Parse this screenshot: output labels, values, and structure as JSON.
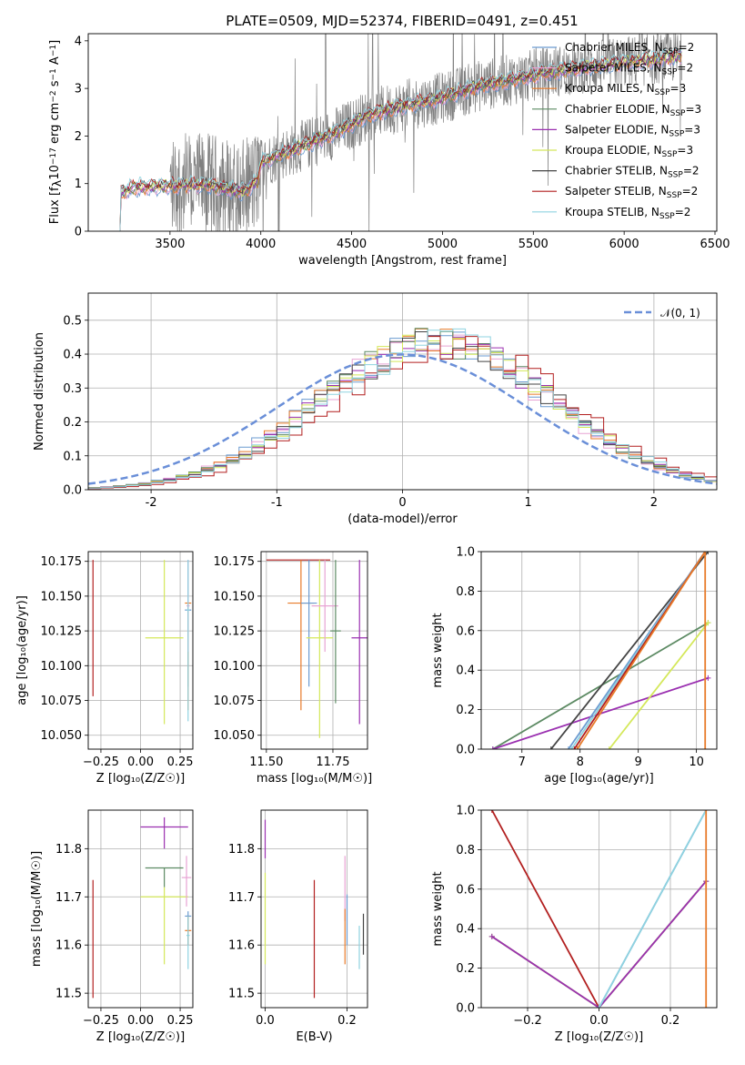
{
  "figure": {
    "title": "PLATE=0509, MJD=52374, FIBERID=0491, z=0.451",
    "models": [
      {
        "name": "Chabrier MILES, N$_{SSP}$=2",
        "label_main": "Chabrier MILES, N",
        "label_sub": "SSP",
        "label_end": "=2",
        "color": "#6b9bd1"
      },
      {
        "name": "Salpeter MILES, N$_{SSP}$=2",
        "label_main": "Salpeter MILES, N",
        "label_sub": "SSP",
        "label_end": "=2",
        "color": "#e8a3d4"
      },
      {
        "name": "Kroupa MILES, N$_{SSP}$=3",
        "label_main": "Kroupa MILES, N",
        "label_sub": "SSP",
        "label_end": "=3",
        "color": "#e87b2a"
      },
      {
        "name": "Chabrier ELODIE, N$_{SSP}$=3",
        "label_main": "Chabrier ELODIE, N",
        "label_sub": "SSP",
        "label_end": "=3",
        "color": "#5c8a63"
      },
      {
        "name": "Salpeter ELODIE, N$_{SSP}$=3",
        "label_main": "Salpeter ELODIE, N",
        "label_sub": "SSP",
        "label_end": "=3",
        "color": "#9a2fb0"
      },
      {
        "name": "Kroupa ELODIE, N$_{SSP}$=3",
        "label_main": "Kroupa ELODIE, N",
        "label_sub": "SSP",
        "label_end": "=3",
        "color": "#d4e85a"
      },
      {
        "name": "Chabrier STELIB, N$_{SSP}$=2",
        "label_main": "Chabrier STELIB, N",
        "label_sub": "SSP",
        "label_end": "=2",
        "color": "#444444"
      },
      {
        "name": "Salpeter STELIB, N$_{SSP}$=2",
        "label_main": "Salpeter STELIB, N",
        "label_sub": "SSP",
        "label_end": "=2",
        "color": "#b21f1f"
      },
      {
        "name": "Kroupa STELIB, N$_{SSP}$=2",
        "label_main": "Kroupa STELIB, N",
        "label_sub": "SSP",
        "label_end": "=2",
        "color": "#8fd3e0"
      }
    ],
    "data_color": "#808080",
    "gaussian_color": "#6a8fd8"
  },
  "chart_data": [
    {
      "id": "spectrum",
      "type": "line",
      "title": "PLATE=0509, MJD=52374, FIBERID=0491, z=0.451",
      "xlabel": "wavelength [Angstrom, rest frame]",
      "ylabel_parts": [
        "Flux [f",
        "λ",
        "10",
        "−17",
        " erg cm",
        "−2",
        " s",
        "−1",
        " A",
        "−1",
        "]"
      ],
      "xlim": [
        3050,
        6510
      ],
      "ylim": [
        0,
        4.15
      ],
      "xticks": [
        3500,
        4000,
        4500,
        5000,
        5500,
        6000,
        6500
      ],
      "yticks": [
        0,
        1,
        2,
        3,
        4
      ],
      "model_continuum": [
        [
          3225,
          0.0
        ],
        [
          3230,
          0.8
        ],
        [
          3300,
          0.92
        ],
        [
          3500,
          0.95
        ],
        [
          3700,
          0.98
        ],
        [
          3800,
          0.9
        ],
        [
          3900,
          0.82
        ],
        [
          3980,
          1.05
        ],
        [
          4000,
          1.45
        ],
        [
          4200,
          1.75
        ],
        [
          4400,
          2.05
        ],
        [
          4600,
          2.45
        ],
        [
          4800,
          2.65
        ],
        [
          5000,
          2.8
        ],
        [
          5200,
          3.05
        ],
        [
          5400,
          3.2
        ],
        [
          5600,
          3.35
        ],
        [
          5800,
          3.45
        ],
        [
          6000,
          3.55
        ],
        [
          6200,
          3.62
        ],
        [
          6320,
          3.7
        ]
      ],
      "data_range": [
        3500,
        6320
      ],
      "legend": "top-right",
      "grid": false
    },
    {
      "id": "residual-histogram",
      "type": "line",
      "xlabel": "(data-model)/error",
      "ylabel": "Normed distribution",
      "xlim": [
        -2.5,
        2.5
      ],
      "ylim": [
        0,
        0.58
      ],
      "xticks": [
        -2,
        -1,
        0,
        1,
        2
      ],
      "yticks": [
        0.0,
        0.1,
        0.2,
        0.3,
        0.4,
        0.5
      ],
      "gaussian_label": "𝒩(0, 1)",
      "gaussian_mu": 0,
      "gaussian_sigma": 1,
      "bin_width": 0.1,
      "histogram_shift": 0.28,
      "histogram_sigma": 0.92,
      "grid": true,
      "legend": "top-right"
    },
    {
      "id": "age-vs-Z",
      "type": "scatter",
      "xlabel": "Z [log₁₀(Z/Z☉)]",
      "ylabel": "age  [log₁₀(age/yr)]",
      "xlim": [
        -0.33,
        0.33
      ],
      "ylim": [
        10.04,
        10.182
      ],
      "xticks": [
        -0.25,
        0.0,
        0.25
      ],
      "xtick_labels": [
        "−0.25",
        "0.00",
        "0.25"
      ],
      "yticks": [
        10.05,
        10.075,
        10.1,
        10.125,
        10.15,
        10.175
      ],
      "ytick_labels": [
        "10.050",
        "10.075",
        "10.100",
        "10.125",
        "10.150",
        "10.175"
      ],
      "grid": true,
      "points": [
        {
          "model": 7,
          "x": -0.3,
          "y": 10.12,
          "xerr": 0,
          "yerr": [
            10.078,
            10.176
          ]
        },
        {
          "model": 5,
          "x": 0.15,
          "y": 10.12,
          "xerr": 0.12,
          "yerr": [
            10.058,
            10.176
          ]
        },
        {
          "model": 0,
          "x": 0.3,
          "y": 10.14,
          "xerr": 0.02,
          "yerr": [
            10.085,
            10.176
          ]
        },
        {
          "model": 2,
          "x": 0.3,
          "y": 10.145,
          "xerr": 0.02,
          "yerr": [
            10.068,
            10.145
          ]
        },
        {
          "model": 1,
          "x": 0.3,
          "y": 10.143,
          "xerr": 0.01,
          "yerr": [
            10.11,
            10.176
          ]
        },
        {
          "model": 8,
          "x": 0.3,
          "y": 10.14,
          "xerr": 0.01,
          "yerr": [
            10.06,
            10.176
          ]
        }
      ]
    },
    {
      "id": "age-vs-mass",
      "type": "scatter",
      "xlabel": "mass [log₁₀(M/M☉)]",
      "ylabel": "",
      "xlim": [
        11.48,
        11.88
      ],
      "ylim": [
        10.04,
        10.182
      ],
      "xticks": [
        11.5,
        11.75
      ],
      "xtick_labels": [
        "11.50",
        "11.75"
      ],
      "yticks": [
        10.05,
        10.075,
        10.1,
        10.125,
        10.15,
        10.175
      ],
      "ytick_labels": [
        "10.050",
        "10.075",
        "10.100",
        "10.125",
        "10.150",
        "10.175"
      ],
      "grid": true,
      "points": [
        {
          "model": 7,
          "x": 11.62,
          "y": 10.176,
          "xerr": 0.12,
          "yerr": [
            10.176,
            10.176
          ]
        },
        {
          "model": 2,
          "x": 11.63,
          "y": 10.145,
          "xerr": 0.05,
          "yerr": [
            10.068,
            10.176
          ]
        },
        {
          "model": 0,
          "x": 11.66,
          "y": 10.145,
          "xerr": 0.03,
          "yerr": [
            10.085,
            10.176
          ]
        },
        {
          "model": 5,
          "x": 11.7,
          "y": 10.12,
          "xerr": 0.05,
          "yerr": [
            10.048,
            10.176
          ]
        },
        {
          "model": 1,
          "x": 11.72,
          "y": 10.143,
          "xerr": 0.05,
          "yerr": [
            10.11,
            10.176
          ]
        },
        {
          "model": 3,
          "x": 11.76,
          "y": 10.125,
          "xerr": 0.02,
          "yerr": [
            10.073,
            10.176
          ]
        },
        {
          "model": 4,
          "x": 11.85,
          "y": 10.12,
          "xerr": 0.03,
          "yerr": [
            10.058,
            10.176
          ]
        }
      ]
    },
    {
      "id": "mass-weight-vs-age",
      "type": "line",
      "xlabel": "age  [log₁₀(age/yr)]",
      "ylabel": "mass weight",
      "xlim": [
        6.3,
        10.35
      ],
      "ylim": [
        0,
        1
      ],
      "xticks": [
        7,
        8,
        9,
        10
      ],
      "yticks": [
        0.0,
        0.2,
        0.4,
        0.6,
        0.8,
        1.0
      ],
      "grid": true,
      "series": [
        {
          "model": 3,
          "x": [
            6.5,
            10.2
          ],
          "y": [
            0.0,
            0.64
          ]
        },
        {
          "model": 4,
          "x": [
            6.5,
            10.2
          ],
          "y": [
            0.0,
            0.36
          ]
        },
        {
          "model": 6,
          "x": [
            7.5,
            10.2
          ],
          "y": [
            0.0,
            1.0
          ]
        },
        {
          "model": 0,
          "x": [
            7.8,
            10.15
          ],
          "y": [
            0.0,
            1.0
          ]
        },
        {
          "model": 8,
          "x": [
            7.85,
            10.15
          ],
          "y": [
            0.0,
            1.0
          ]
        },
        {
          "model": 7,
          "x": [
            7.9,
            10.15
          ],
          "y": [
            0.0,
            1.0
          ]
        },
        {
          "model": 2,
          "x": [
            7.95,
            10.15
          ],
          "y": [
            0.0,
            1.0
          ]
        },
        {
          "model": 5,
          "x": [
            8.5,
            10.2
          ],
          "y": [
            0.0,
            0.64
          ]
        },
        {
          "model": 2,
          "x": [
            10.15,
            10.15
          ],
          "y": [
            0.0,
            1.0
          ]
        }
      ]
    },
    {
      "id": "mass-vs-Z",
      "type": "scatter",
      "xlabel": "Z [log₁₀(Z/Z☉)]",
      "ylabel": "mass [log₁₀(M/M☉)]",
      "xlim": [
        -0.33,
        0.33
      ],
      "ylim": [
        11.47,
        11.88
      ],
      "xticks": [
        -0.25,
        0.0,
        0.25
      ],
      "xtick_labels": [
        "−0.25",
        "0.00",
        "0.25"
      ],
      "yticks": [
        11.5,
        11.6,
        11.7,
        11.8
      ],
      "ytick_labels": [
        "11.5",
        "11.6",
        "11.7",
        "11.8"
      ],
      "grid": true,
      "points": [
        {
          "model": 7,
          "x": -0.3,
          "y": 11.62,
          "xerr": 0,
          "yerr": [
            11.49,
            11.735
          ]
        },
        {
          "model": 4,
          "x": 0.15,
          "y": 11.845,
          "xerr": 0.15,
          "yerr": [
            11.8,
            11.865
          ]
        },
        {
          "model": 3,
          "x": 0.15,
          "y": 11.76,
          "xerr": 0.12,
          "yerr": [
            11.72,
            11.76
          ]
        },
        {
          "model": 5,
          "x": 0.15,
          "y": 11.7,
          "xerr": 0.15,
          "yerr": [
            11.56,
            11.72
          ]
        },
        {
          "model": 1,
          "x": 0.29,
          "y": 11.74,
          "xerr": 0.03,
          "yerr": [
            11.68,
            11.785
          ]
        },
        {
          "model": 0,
          "x": 0.3,
          "y": 11.66,
          "xerr": 0.02,
          "yerr": [
            11.6,
            11.67
          ]
        },
        {
          "model": 2,
          "x": 0.3,
          "y": 11.63,
          "xerr": 0.02,
          "yerr": [
            11.6,
            11.66
          ]
        },
        {
          "model": 8,
          "x": 0.3,
          "y": 11.62,
          "xerr": 0.01,
          "yerr": [
            11.55,
            11.66
          ]
        }
      ]
    },
    {
      "id": "mass-vs-EBV",
      "type": "scatter",
      "xlabel": "E(B-V)",
      "ylabel": "",
      "xlim": [
        -0.01,
        0.25
      ],
      "ylim": [
        11.47,
        11.88
      ],
      "xticks": [
        0.0,
        0.2
      ],
      "xtick_labels": [
        "0.0",
        "0.2"
      ],
      "yticks": [
        11.5,
        11.6,
        11.7,
        11.8
      ],
      "ytick_labels": [
        "11.5",
        "11.6",
        "11.7",
        "11.8"
      ],
      "grid": true,
      "points": [
        {
          "model": 4,
          "x": 0.0,
          "y": 11.82,
          "xerr": 0,
          "yerr": [
            11.78,
            11.86
          ]
        },
        {
          "model": 5,
          "x": 0.0,
          "y": 11.68,
          "xerr": 0,
          "yerr": [
            11.56,
            11.75
          ]
        },
        {
          "model": 7,
          "x": 0.12,
          "y": 11.62,
          "xerr": 0,
          "yerr": [
            11.49,
            11.735
          ]
        },
        {
          "model": 1,
          "x": 0.195,
          "y": 11.72,
          "xerr": 0,
          "yerr": [
            11.65,
            11.785
          ]
        },
        {
          "model": 2,
          "x": 0.195,
          "y": 11.62,
          "xerr": 0,
          "yerr": [
            11.56,
            11.675
          ]
        },
        {
          "model": 0,
          "x": 0.2,
          "y": 11.66,
          "xerr": 0,
          "yerr": [
            11.6,
            11.705
          ]
        },
        {
          "model": 8,
          "x": 0.23,
          "y": 11.6,
          "xerr": 0,
          "yerr": [
            11.55,
            11.64
          ]
        },
        {
          "model": 6,
          "x": 0.24,
          "y": 11.62,
          "xerr": 0,
          "yerr": [
            11.58,
            11.665
          ]
        }
      ]
    },
    {
      "id": "mass-weight-vs-Z",
      "type": "line",
      "xlabel": "Z [log₁₀(Z/Z☉)]",
      "ylabel": "mass weight",
      "xlim": [
        -0.33,
        0.33
      ],
      "ylim": [
        0,
        1
      ],
      "xticks": [
        -0.2,
        0.0,
        0.2
      ],
      "xtick_labels": [
        "−0.2",
        "0.0",
        "0.2"
      ],
      "yticks": [
        0.0,
        0.2,
        0.4,
        0.6,
        0.8,
        1.0
      ],
      "grid": true,
      "series": [
        {
          "model": 7,
          "x": [
            -0.3,
            0.0
          ],
          "y": [
            1.0,
            0.0
          ]
        },
        {
          "model": 3,
          "x": [
            -0.3,
            0.0,
            0.3
          ],
          "y": [
            0.36,
            0.0,
            0.64
          ]
        },
        {
          "model": 5,
          "x": [
            -0.3,
            0.0,
            0.3
          ],
          "y": [
            0.36,
            0.0,
            0.64
          ]
        },
        {
          "model": 4,
          "x": [
            -0.3,
            0.0,
            0.3
          ],
          "y": [
            0.36,
            0.0,
            0.64
          ]
        },
        {
          "model": 0,
          "x": [
            0.0,
            0.3
          ],
          "y": [
            0.0,
            1.0
          ]
        },
        {
          "model": 8,
          "x": [
            0.0,
            0.3
          ],
          "y": [
            0.0,
            1.0
          ]
        },
        {
          "model": 2,
          "x": [
            0.3,
            0.3
          ],
          "y": [
            0.0,
            1.0
          ]
        }
      ]
    }
  ]
}
